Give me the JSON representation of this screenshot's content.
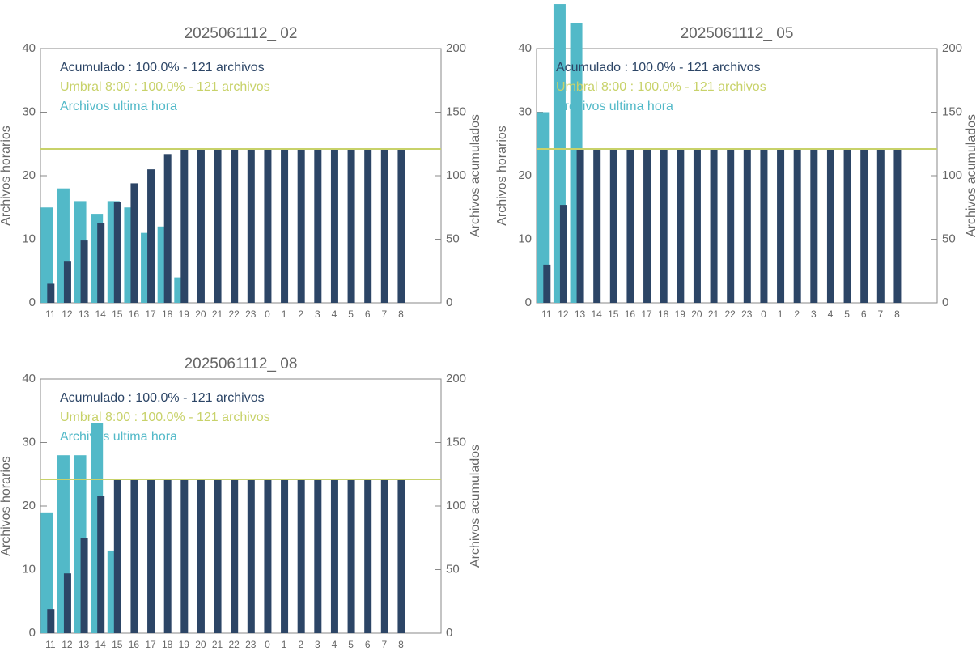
{
  "chart_data": [
    {
      "type": "bar",
      "title": "2025061112_ 02",
      "ylabel": "Archivos horarios",
      "y2label": "Archivos acumulados",
      "categories": [
        "11",
        "12",
        "13",
        "14",
        "15",
        "16",
        "17",
        "18",
        "19",
        "20",
        "21",
        "22",
        "23",
        "0",
        "1",
        "2",
        "3",
        "4",
        "5",
        "6",
        "7",
        "8"
      ],
      "series": [
        {
          "name": "Acumulado : 100.0% - 121 archivos",
          "color": "#2c4566",
          "axis": "y2",
          "values": [
            15,
            33,
            49,
            63,
            79,
            94,
            105,
            117,
            121,
            121,
            121,
            121,
            121,
            121,
            121,
            121,
            121,
            121,
            121,
            121,
            121,
            121
          ]
        },
        {
          "name": "Archivos ultima hora",
          "color": "#52b9c8",
          "values": [
            15,
            18,
            16,
            14,
            16,
            15,
            11,
            12,
            4,
            0,
            0,
            0,
            0,
            0,
            0,
            0,
            0,
            0,
            0,
            0,
            0,
            0
          ]
        }
      ],
      "reference_line": {
        "name": "Umbral 8:00 : 100.0% - 121 archivos",
        "color": "#c8d26a",
        "value": 121,
        "axis": "y2"
      },
      "ylim": [
        0,
        40
      ],
      "yticks": [
        0,
        10,
        20,
        30,
        40
      ],
      "y2lim": [
        0,
        200
      ],
      "y2ticks": [
        0,
        50,
        100,
        150,
        200
      ]
    },
    {
      "type": "bar",
      "title": "2025061112_ 05",
      "ylabel": "Archivos horarios",
      "y2label": "Archivos acumulados",
      "categories": [
        "11",
        "12",
        "13",
        "14",
        "15",
        "16",
        "17",
        "18",
        "19",
        "20",
        "21",
        "22",
        "23",
        "0",
        "1",
        "2",
        "3",
        "4",
        "5",
        "6",
        "7",
        "8"
      ],
      "series": [
        {
          "name": "Acumulado : 100.0% - 121 archivos",
          "color": "#2c4566",
          "axis": "y2",
          "values": [
            30,
            77,
            121,
            121,
            121,
            121,
            121,
            121,
            121,
            121,
            121,
            121,
            121,
            121,
            121,
            121,
            121,
            121,
            121,
            121,
            121,
            121
          ]
        },
        {
          "name": "Archivos ultima hora",
          "color": "#52b9c8",
          "values": [
            30,
            47,
            44,
            0,
            0,
            0,
            0,
            0,
            0,
            0,
            0,
            0,
            0,
            0,
            0,
            0,
            0,
            0,
            0,
            0,
            0,
            0
          ]
        }
      ],
      "reference_line": {
        "name": "Umbral 8:00 : 100.0% - 121 archivos",
        "color": "#c8d26a",
        "value": 121,
        "axis": "y2"
      },
      "ylim": [
        0,
        40
      ],
      "yticks": [
        0,
        10,
        20,
        30,
        40
      ],
      "y2lim": [
        0,
        200
      ],
      "y2ticks": [
        0,
        50,
        100,
        150,
        200
      ]
    },
    {
      "type": "bar",
      "title": "2025061112_ 08",
      "ylabel": "Archivos horarios",
      "y2label": "Archivos acumulados",
      "categories": [
        "11",
        "12",
        "13",
        "14",
        "15",
        "16",
        "17",
        "18",
        "19",
        "20",
        "21",
        "22",
        "23",
        "0",
        "1",
        "2",
        "3",
        "4",
        "5",
        "6",
        "7",
        "8"
      ],
      "series": [
        {
          "name": "Acumulado : 100.0% - 121 archivos",
          "color": "#2c4566",
          "axis": "y2",
          "values": [
            19,
            47,
            75,
            108,
            121,
            121,
            121,
            121,
            121,
            121,
            121,
            121,
            121,
            121,
            121,
            121,
            121,
            121,
            121,
            121,
            121,
            121
          ]
        },
        {
          "name": "Archivos ultima hora",
          "color": "#52b9c8",
          "values": [
            19,
            28,
            28,
            33,
            13,
            0,
            0,
            0,
            0,
            0,
            0,
            0,
            0,
            0,
            0,
            0,
            0,
            0,
            0,
            0,
            0,
            0
          ]
        }
      ],
      "reference_line": {
        "name": "Umbral 8:00 : 100.0% - 121 archivos",
        "color": "#c8d26a",
        "value": 121,
        "axis": "y2"
      },
      "ylim": [
        0,
        40
      ],
      "yticks": [
        0,
        10,
        20,
        30,
        40
      ],
      "y2lim": [
        0,
        200
      ],
      "y2ticks": [
        0,
        50,
        100,
        150,
        200
      ]
    }
  ]
}
